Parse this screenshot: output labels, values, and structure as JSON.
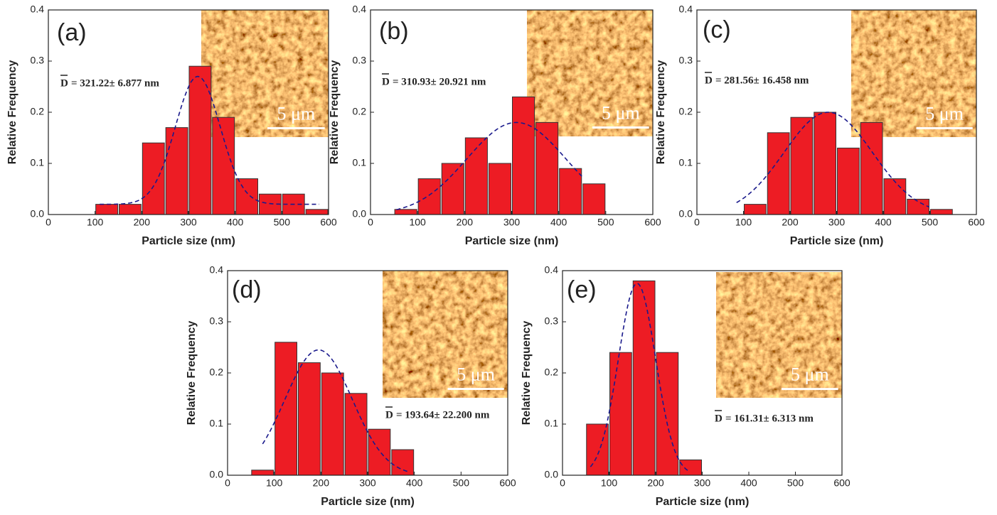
{
  "chart_data": [
    {
      "type": "histogram",
      "panel_label": "(a)",
      "x_label": "Particle size (nm)",
      "y_label": "Relative Frequency",
      "annotation": {
        "symbol": "D",
        "text": "= 321.22± 6.877 nm"
      },
      "scale_label": "5 μm",
      "bins": [
        100,
        150,
        200,
        250,
        300,
        350,
        400,
        450,
        500,
        550,
        600
      ],
      "values": [
        0.02,
        0.02,
        0.14,
        0.17,
        0.29,
        0.19,
        0.07,
        0.04,
        0.04,
        0.01
      ],
      "color": "#ed1c24",
      "fit": {
        "color": "#1a1a8c",
        "x0": 320,
        "sigma": 48,
        "amplitude": 0.25,
        "offset": 0.02,
        "range": [
          110,
          580
        ]
      },
      "xlim": [
        0,
        600
      ],
      "ylim": [
        0,
        0.4
      ],
      "xticks": [
        0,
        100,
        200,
        300,
        400,
        500,
        600
      ],
      "yticks": [
        {
          "value": 0,
          "label": "0.0"
        },
        0.1,
        0.2,
        0.3,
        0.4
      ]
    },
    {
      "type": "histogram",
      "panel_label": "(b)",
      "x_label": "Particle size (nm)",
      "y_label": "Relative Frequency",
      "annotation": {
        "symbol": "D",
        "text": "= 310.93± 20.921 nm"
      },
      "scale_label": "5 μm",
      "bins": [
        50,
        100,
        150,
        200,
        250,
        300,
        350,
        400,
        450,
        500
      ],
      "values": [
        0.01,
        0.07,
        0.1,
        0.15,
        0.1,
        0.23,
        0.18,
        0.09,
        0.06
      ],
      "color": "#ed1c24",
      "fit": {
        "color": "#1a1a8c",
        "x0": 310,
        "sigma": 105,
        "amplitude": 0.18,
        "offset": 0,
        "range": [
          55,
          450
        ]
      },
      "xlim": [
        0,
        600
      ],
      "ylim": [
        0,
        0.4
      ],
      "xticks": [
        0,
        100,
        200,
        300,
        400,
        500,
        600
      ],
      "yticks": [
        {
          "value": 0,
          "label": "0.0"
        },
        0.1,
        0.2,
        0.3,
        0.4
      ]
    },
    {
      "type": "histogram",
      "panel_label": "(c)",
      "x_label": "Particle size (nm)",
      "y_label": "Relative Frequency",
      "annotation": {
        "symbol": "D",
        "text": "= 281.56± 16.458 nm"
      },
      "scale_label": "5 μm",
      "bins": [
        100,
        150,
        200,
        250,
        300,
        350,
        400,
        450,
        500,
        550
      ],
      "values": [
        0.02,
        0.16,
        0.19,
        0.2,
        0.13,
        0.18,
        0.07,
        0.03,
        0.01
      ],
      "color": "#ed1c24",
      "fit": {
        "color": "#1a1a8c",
        "x0": 282,
        "sigma": 95,
        "amplitude": 0.2,
        "offset": 0,
        "range": [
          85,
          500
        ]
      },
      "xlim": [
        0,
        600
      ],
      "ylim": [
        0,
        0.4
      ],
      "xticks": [
        0,
        100,
        200,
        300,
        400,
        500,
        600
      ],
      "yticks": [
        {
          "value": 0,
          "label": "0.0"
        },
        0.1,
        0.2,
        0.3,
        0.4
      ]
    },
    {
      "type": "histogram",
      "panel_label": "(d)",
      "x_label": "Particle size (nm)",
      "y_label": "Relative Frequency",
      "annotation": {
        "symbol": "D",
        "text": "= 193.64± 22.200 nm"
      },
      "scale_label": "5 μm",
      "bins": [
        50,
        100,
        150,
        200,
        250,
        300,
        350,
        400
      ],
      "values": [
        0.01,
        0.26,
        0.22,
        0.2,
        0.16,
        0.09,
        0.05
      ],
      "color": "#ed1c24",
      "fit": {
        "color": "#1a1a8c",
        "x0": 195,
        "sigma": 72,
        "amplitude": 0.245,
        "offset": 0,
        "range": [
          75,
          390
        ]
      },
      "xlim": [
        0,
        600
      ],
      "ylim": [
        0,
        0.4
      ],
      "xticks": [
        0,
        100,
        200,
        300,
        400,
        500,
        600
      ],
      "yticks": [
        {
          "value": 0,
          "label": "0.0"
        },
        0.1,
        0.2,
        0.3,
        0.4
      ]
    },
    {
      "type": "histogram",
      "panel_label": "(e)",
      "x_label": "Particle size (nm)",
      "y_label": "Relative Frequency",
      "annotation": {
        "symbol": "D",
        "text": "= 161.31± 6.313 nm"
      },
      "scale_label": "5 μm",
      "bins": [
        50,
        100,
        150,
        200,
        250,
        300
      ],
      "values": [
        0.1,
        0.24,
        0.38,
        0.24,
        0.03
      ],
      "color": "#ed1c24",
      "fit": {
        "color": "#1a1a8c",
        "x0": 160,
        "sigma": 40,
        "amplitude": 0.375,
        "offset": 0,
        "range": [
          60,
          270
        ]
      },
      "xlim": [
        0,
        600
      ],
      "ylim": [
        0,
        0.4
      ],
      "xticks": [
        0,
        100,
        200,
        300,
        400,
        500,
        600
      ],
      "yticks": [
        {
          "value": 0,
          "label": "0.0"
        },
        0.1,
        0.2,
        0.3,
        0.4
      ]
    }
  ]
}
